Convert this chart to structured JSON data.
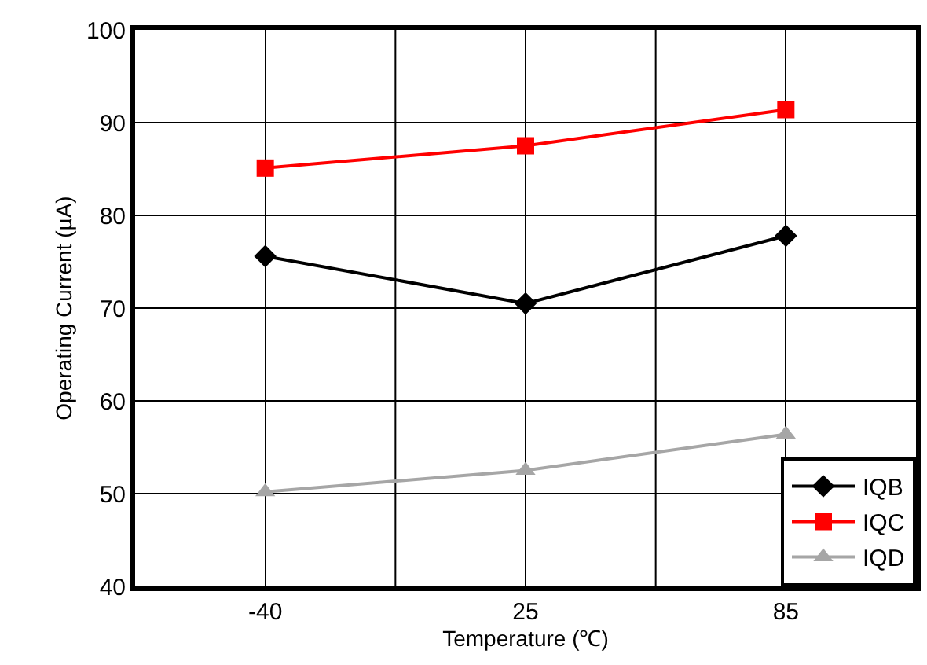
{
  "chart_data": {
    "type": "line",
    "xlabel": "Temperature (℃)",
    "ylabel": "Operating Current (µA)",
    "categories": [
      "-40",
      "25",
      "85"
    ],
    "series": [
      {
        "name": "IQB",
        "color": "#000000",
        "marker": "diamond",
        "values": [
          75.6,
          70.5,
          77.8
        ]
      },
      {
        "name": "IQC",
        "color": "#ff0000",
        "marker": "square",
        "values": [
          85.1,
          87.5,
          91.4
        ]
      },
      {
        "name": "IQD",
        "color": "#a6a6a6",
        "marker": "triangle",
        "values": [
          50.2,
          52.5,
          56.4
        ]
      }
    ],
    "ylim": [
      40,
      100
    ],
    "yticks": [
      40,
      50,
      60,
      70,
      80,
      90,
      100
    ],
    "grid": true,
    "legend": "bottom right",
    "line_style": "solid"
  }
}
